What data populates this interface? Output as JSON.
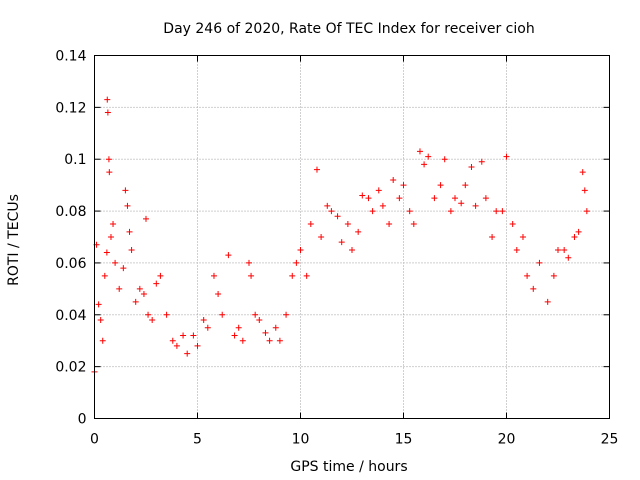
{
  "chart_data": {
    "type": "scatter",
    "title": "Day 246 of 2020, Rate Of TEC Index for receiver cioh",
    "xlabel": "GPS time / hours",
    "ylabel": "ROTI / TECUs",
    "xlim": [
      0,
      25
    ],
    "ylim": [
      0,
      0.14
    ],
    "xticks": [
      "0",
      "5",
      "10",
      "15",
      "20",
      "25"
    ],
    "yticks": [
      "0",
      "0.02",
      "0.04",
      "0.06",
      "0.08",
      "0.1",
      "0.12",
      "0.14"
    ],
    "grid": true,
    "marker": "+",
    "color": "#ff0000",
    "series": [
      {
        "name": "ROTI",
        "points": [
          [
            0.0,
            0.018
          ],
          [
            0.1,
            0.067
          ],
          [
            0.2,
            0.044
          ],
          [
            0.3,
            0.038
          ],
          [
            0.4,
            0.03
          ],
          [
            0.5,
            0.055
          ],
          [
            0.6,
            0.064
          ],
          [
            0.62,
            0.123
          ],
          [
            0.65,
            0.118
          ],
          [
            0.7,
            0.1
          ],
          [
            0.72,
            0.095
          ],
          [
            0.8,
            0.07
          ],
          [
            0.9,
            0.075
          ],
          [
            1.0,
            0.06
          ],
          [
            1.2,
            0.05
          ],
          [
            1.4,
            0.058
          ],
          [
            1.5,
            0.088
          ],
          [
            1.6,
            0.082
          ],
          [
            1.7,
            0.072
          ],
          [
            1.8,
            0.065
          ],
          [
            2.0,
            0.045
          ],
          [
            2.2,
            0.05
          ],
          [
            2.4,
            0.048
          ],
          [
            2.5,
            0.077
          ],
          [
            2.6,
            0.04
          ],
          [
            2.8,
            0.038
          ],
          [
            3.0,
            0.052
          ],
          [
            3.2,
            0.055
          ],
          [
            3.5,
            0.04
          ],
          [
            3.8,
            0.03
          ],
          [
            4.0,
            0.028
          ],
          [
            4.3,
            0.032
          ],
          [
            4.5,
            0.025
          ],
          [
            4.8,
            0.032
          ],
          [
            5.0,
            0.028
          ],
          [
            5.3,
            0.038
          ],
          [
            5.5,
            0.035
          ],
          [
            5.8,
            0.055
          ],
          [
            6.0,
            0.048
          ],
          [
            6.2,
            0.04
          ],
          [
            6.5,
            0.063
          ],
          [
            6.8,
            0.032
          ],
          [
            7.0,
            0.035
          ],
          [
            7.2,
            0.03
          ],
          [
            7.5,
            0.06
          ],
          [
            7.6,
            0.055
          ],
          [
            7.8,
            0.04
          ],
          [
            8.0,
            0.038
          ],
          [
            8.3,
            0.033
          ],
          [
            8.5,
            0.03
          ],
          [
            8.8,
            0.035
          ],
          [
            9.0,
            0.03
          ],
          [
            9.3,
            0.04
          ],
          [
            9.6,
            0.055
          ],
          [
            9.8,
            0.06
          ],
          [
            10.0,
            0.065
          ],
          [
            10.3,
            0.055
          ],
          [
            10.5,
            0.075
          ],
          [
            10.8,
            0.096
          ],
          [
            11.0,
            0.07
          ],
          [
            11.3,
            0.082
          ],
          [
            11.5,
            0.08
          ],
          [
            11.8,
            0.078
          ],
          [
            12.0,
            0.068
          ],
          [
            12.3,
            0.075
          ],
          [
            12.5,
            0.065
          ],
          [
            12.8,
            0.072
          ],
          [
            13.0,
            0.086
          ],
          [
            13.3,
            0.085
          ],
          [
            13.5,
            0.08
          ],
          [
            13.8,
            0.088
          ],
          [
            14.0,
            0.082
          ],
          [
            14.3,
            0.075
          ],
          [
            14.5,
            0.092
          ],
          [
            14.8,
            0.085
          ],
          [
            15.0,
            0.09
          ],
          [
            15.3,
            0.08
          ],
          [
            15.5,
            0.075
          ],
          [
            15.8,
            0.103
          ],
          [
            16.0,
            0.098
          ],
          [
            16.2,
            0.101
          ],
          [
            16.5,
            0.085
          ],
          [
            16.8,
            0.09
          ],
          [
            17.0,
            0.1
          ],
          [
            17.3,
            0.08
          ],
          [
            17.5,
            0.085
          ],
          [
            17.8,
            0.083
          ],
          [
            18.0,
            0.09
          ],
          [
            18.3,
            0.097
          ],
          [
            18.5,
            0.082
          ],
          [
            18.8,
            0.099
          ],
          [
            19.0,
            0.085
          ],
          [
            19.3,
            0.07
          ],
          [
            19.5,
            0.08
          ],
          [
            19.8,
            0.08
          ],
          [
            20.0,
            0.101
          ],
          [
            20.3,
            0.075
          ],
          [
            20.5,
            0.065
          ],
          [
            20.8,
            0.07
          ],
          [
            21.0,
            0.055
          ],
          [
            21.3,
            0.05
          ],
          [
            21.6,
            0.06
          ],
          [
            22.0,
            0.045
          ],
          [
            22.3,
            0.055
          ],
          [
            22.5,
            0.065
          ],
          [
            22.8,
            0.065
          ],
          [
            23.0,
            0.062
          ],
          [
            23.3,
            0.07
          ],
          [
            23.5,
            0.072
          ],
          [
            23.7,
            0.095
          ],
          [
            23.8,
            0.088
          ],
          [
            23.9,
            0.08
          ]
        ]
      }
    ]
  }
}
